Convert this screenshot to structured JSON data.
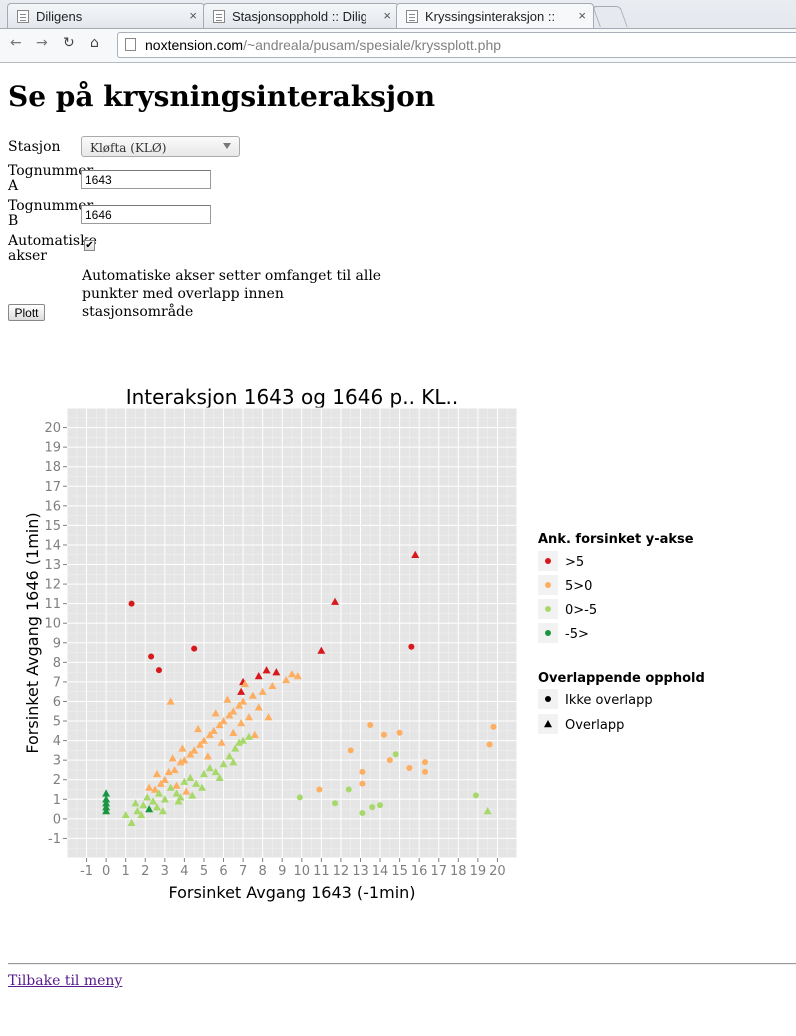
{
  "browser": {
    "tabs": [
      {
        "label": "Diligens",
        "active": false
      },
      {
        "label": "Stasjonsopphold :: Dilig",
        "active": false
      },
      {
        "label": "Kryssingsinteraksjon ::",
        "active": true
      }
    ],
    "url_host": "noxtension.com",
    "url_path": "/~andreala/pusam/spesiale/kryssplott.php",
    "close_glyph": "×"
  },
  "page": {
    "title": "Se på krysningsinteraksjon",
    "form": {
      "station_label": "Stasjon",
      "station_value": "Kløfta (KLØ)",
      "train_a_label": "Tognummer A",
      "train_a_value": "1643",
      "train_b_label": "Tognummer B",
      "train_b_value": "1646",
      "auto_axes_label": "Automatiske akser",
      "auto_axes_checked": true,
      "auto_axes_help": "Automatiske akser setter omfanget til alle punkter med overlapp innen stasjonsområde",
      "plot_button": "Plott"
    },
    "back_link": "Tilbake til meny"
  },
  "colors": {
    "gt5": "#d7191c",
    "5to0": "#fdae61",
    "0tom5": "#a6d96a",
    "ltm5": "#1a9641",
    "panel_bg": "#e5e5e5"
  },
  "chart_data": {
    "type": "scatter",
    "title": "Interaksjon 1643 og 1646 p.. KL..",
    "xlabel": "Forsinket Avgang 1643 (-1min)",
    "ylabel": "Forsinket Avgang 1646 (1min)",
    "xlim": [
      -2,
      21
    ],
    "ylim": [
      -2,
      21
    ],
    "x_ticks": [
      -1,
      0,
      1,
      2,
      3,
      4,
      5,
      6,
      7,
      8,
      9,
      10,
      11,
      12,
      13,
      14,
      15,
      16,
      17,
      18,
      19,
      20
    ],
    "y_ticks": [
      -1,
      0,
      1,
      2,
      3,
      4,
      5,
      6,
      7,
      8,
      9,
      10,
      11,
      12,
      13,
      14,
      15,
      16,
      17,
      18,
      19,
      20
    ],
    "grid": true,
    "legend_position": "right",
    "legend_color_title": "Ank. forsinket y-akse",
    "legend_color_entries": [
      ">5",
      "5>0",
      "0>-5",
      "-5>"
    ],
    "legend_shape_title": "Overlappende opphold",
    "legend_shape_entries": [
      "Ikke overlapp",
      "Overlapp"
    ],
    "series": [
      {
        "name": ">5",
        "points": [
          {
            "x": 1.3,
            "y": 11,
            "shape": "circle"
          },
          {
            "x": 2.3,
            "y": 8.3,
            "shape": "circle"
          },
          {
            "x": 2.7,
            "y": 7.6,
            "shape": "circle"
          },
          {
            "x": 4.5,
            "y": 8.7,
            "shape": "circle"
          },
          {
            "x": 15.6,
            "y": 8.8,
            "shape": "circle"
          },
          {
            "x": 15.8,
            "y": 13.5,
            "shape": "triangle"
          },
          {
            "x": 11.7,
            "y": 11.1,
            "shape": "triangle"
          },
          {
            "x": 11.0,
            "y": 8.6,
            "shape": "triangle"
          },
          {
            "x": 7.0,
            "y": 7.0,
            "shape": "triangle"
          },
          {
            "x": 7.8,
            "y": 7.3,
            "shape": "triangle"
          },
          {
            "x": 8.2,
            "y": 7.6,
            "shape": "triangle"
          },
          {
            "x": 8.7,
            "y": 7.5,
            "shape": "triangle"
          },
          {
            "x": 6.9,
            "y": 6.5,
            "shape": "triangle"
          }
        ]
      },
      {
        "name": "5>0",
        "points": [
          {
            "x": 3.3,
            "y": 6.0,
            "shape": "triangle"
          },
          {
            "x": 12.5,
            "y": 3.5,
            "shape": "circle"
          },
          {
            "x": 13.5,
            "y": 4.8,
            "shape": "circle"
          },
          {
            "x": 14.2,
            "y": 4.3,
            "shape": "circle"
          },
          {
            "x": 15.0,
            "y": 4.4,
            "shape": "circle"
          },
          {
            "x": 13.1,
            "y": 2.4,
            "shape": "circle"
          },
          {
            "x": 14.5,
            "y": 3.0,
            "shape": "circle"
          },
          {
            "x": 15.5,
            "y": 2.6,
            "shape": "circle"
          },
          {
            "x": 16.3,
            "y": 2.9,
            "shape": "circle"
          },
          {
            "x": 16.3,
            "y": 2.4,
            "shape": "circle"
          },
          {
            "x": 13.1,
            "y": 1.8,
            "shape": "circle"
          },
          {
            "x": 10.9,
            "y": 1.5,
            "shape": "circle"
          },
          {
            "x": 19.8,
            "y": 4.7,
            "shape": "circle"
          },
          {
            "x": 19.6,
            "y": 3.8,
            "shape": "circle"
          },
          {
            "x": 9.5,
            "y": 7.4,
            "shape": "triangle"
          },
          {
            "x": 9.2,
            "y": 7.1,
            "shape": "triangle"
          },
          {
            "x": 9.8,
            "y": 7.3,
            "shape": "triangle"
          },
          {
            "x": 2.5,
            "y": 1.5,
            "shape": "triangle"
          },
          {
            "x": 3.0,
            "y": 2.0,
            "shape": "triangle"
          },
          {
            "x": 3.5,
            "y": 2.5,
            "shape": "triangle"
          },
          {
            "x": 4.0,
            "y": 3.0,
            "shape": "triangle"
          },
          {
            "x": 4.5,
            "y": 3.5,
            "shape": "triangle"
          },
          {
            "x": 5.0,
            "y": 4.0,
            "shape": "triangle"
          },
          {
            "x": 5.5,
            "y": 4.5,
            "shape": "triangle"
          },
          {
            "x": 6.0,
            "y": 5.0,
            "shape": "triangle"
          },
          {
            "x": 6.5,
            "y": 5.5,
            "shape": "triangle"
          },
          {
            "x": 7.0,
            "y": 6.0,
            "shape": "triangle"
          },
          {
            "x": 7.5,
            "y": 6.3,
            "shape": "triangle"
          },
          {
            "x": 8.0,
            "y": 6.5,
            "shape": "triangle"
          },
          {
            "x": 8.5,
            "y": 6.8,
            "shape": "triangle"
          },
          {
            "x": 3.2,
            "y": 2.4,
            "shape": "triangle"
          },
          {
            "x": 3.8,
            "y": 2.9,
            "shape": "triangle"
          },
          {
            "x": 4.3,
            "y": 3.3,
            "shape": "triangle"
          },
          {
            "x": 4.8,
            "y": 3.8,
            "shape": "triangle"
          },
          {
            "x": 5.3,
            "y": 4.3,
            "shape": "triangle"
          },
          {
            "x": 5.8,
            "y": 4.8,
            "shape": "triangle"
          },
          {
            "x": 6.3,
            "y": 5.3,
            "shape": "triangle"
          },
          {
            "x": 6.8,
            "y": 5.8,
            "shape": "triangle"
          },
          {
            "x": 7.3,
            "y": 5.2,
            "shape": "triangle"
          },
          {
            "x": 7.8,
            "y": 5.7,
            "shape": "triangle"
          },
          {
            "x": 6.5,
            "y": 4.4,
            "shape": "triangle"
          },
          {
            "x": 5.9,
            "y": 3.9,
            "shape": "triangle"
          },
          {
            "x": 2.8,
            "y": 1.8,
            "shape": "triangle"
          },
          {
            "x": 2.2,
            "y": 1.6,
            "shape": "triangle"
          },
          {
            "x": 3.6,
            "y": 1.7,
            "shape": "triangle"
          },
          {
            "x": 4.1,
            "y": 1.4,
            "shape": "triangle"
          },
          {
            "x": 5.2,
            "y": 3.2,
            "shape": "triangle"
          },
          {
            "x": 6.9,
            "y": 4.9,
            "shape": "triangle"
          },
          {
            "x": 7.6,
            "y": 4.3,
            "shape": "triangle"
          },
          {
            "x": 8.3,
            "y": 5.2,
            "shape": "triangle"
          },
          {
            "x": 3.9,
            "y": 3.6,
            "shape": "triangle"
          },
          {
            "x": 4.7,
            "y": 4.6,
            "shape": "triangle"
          },
          {
            "x": 5.6,
            "y": 5.4,
            "shape": "triangle"
          },
          {
            "x": 6.2,
            "y": 6.1,
            "shape": "triangle"
          },
          {
            "x": 7.1,
            "y": 6.9,
            "shape": "triangle"
          },
          {
            "x": 2.6,
            "y": 2.3,
            "shape": "triangle"
          },
          {
            "x": 3.4,
            "y": 3.1,
            "shape": "triangle"
          }
        ]
      },
      {
        "name": "0>-5",
        "points": [
          {
            "x": 9.9,
            "y": 1.1,
            "shape": "circle"
          },
          {
            "x": 11.7,
            "y": 0.8,
            "shape": "circle"
          },
          {
            "x": 12.4,
            "y": 1.5,
            "shape": "circle"
          },
          {
            "x": 13.1,
            "y": 0.3,
            "shape": "circle"
          },
          {
            "x": 13.6,
            "y": 0.6,
            "shape": "circle"
          },
          {
            "x": 14.0,
            "y": 0.7,
            "shape": "circle"
          },
          {
            "x": 14.8,
            "y": 3.3,
            "shape": "circle"
          },
          {
            "x": 18.9,
            "y": 1.2,
            "shape": "circle"
          },
          {
            "x": 19.5,
            "y": 0.4,
            "shape": "triangle"
          },
          {
            "x": 1.0,
            "y": 0.2,
            "shape": "triangle"
          },
          {
            "x": 1.3,
            "y": -0.2,
            "shape": "triangle"
          },
          {
            "x": 1.6,
            "y": 0.4,
            "shape": "triangle"
          },
          {
            "x": 1.9,
            "y": 0.7,
            "shape": "triangle"
          },
          {
            "x": 2.1,
            "y": 1.1,
            "shape": "triangle"
          },
          {
            "x": 2.4,
            "y": 0.9,
            "shape": "triangle"
          },
          {
            "x": 2.7,
            "y": 1.3,
            "shape": "triangle"
          },
          {
            "x": 3.0,
            "y": 1.0,
            "shape": "triangle"
          },
          {
            "x": 3.3,
            "y": 1.6,
            "shape": "triangle"
          },
          {
            "x": 3.6,
            "y": 1.3,
            "shape": "triangle"
          },
          {
            "x": 4.0,
            "y": 1.9,
            "shape": "triangle"
          },
          {
            "x": 4.3,
            "y": 2.1,
            "shape": "triangle"
          },
          {
            "x": 4.6,
            "y": 1.8,
            "shape": "triangle"
          },
          {
            "x": 5.0,
            "y": 2.3,
            "shape": "triangle"
          },
          {
            "x": 5.3,
            "y": 2.6,
            "shape": "triangle"
          },
          {
            "x": 5.6,
            "y": 2.4,
            "shape": "triangle"
          },
          {
            "x": 6.0,
            "y": 2.8,
            "shape": "triangle"
          },
          {
            "x": 6.3,
            "y": 3.2,
            "shape": "triangle"
          },
          {
            "x": 6.6,
            "y": 3.6,
            "shape": "triangle"
          },
          {
            "x": 7.0,
            "y": 4.0,
            "shape": "triangle"
          },
          {
            "x": 1.5,
            "y": 0.8,
            "shape": "triangle"
          },
          {
            "x": 1.8,
            "y": 0.2,
            "shape": "triangle"
          },
          {
            "x": 2.2,
            "y": 0.5,
            "shape": "triangle"
          },
          {
            "x": 2.6,
            "y": 0.6,
            "shape": "triangle"
          },
          {
            "x": 3.8,
            "y": 1.1,
            "shape": "triangle"
          },
          {
            "x": 4.9,
            "y": 1.6,
            "shape": "triangle"
          },
          {
            "x": 5.8,
            "y": 2.1,
            "shape": "triangle"
          },
          {
            "x": 6.5,
            "y": 2.9,
            "shape": "triangle"
          },
          {
            "x": 7.3,
            "y": 4.2,
            "shape": "triangle"
          },
          {
            "x": 6.8,
            "y": 3.9,
            "shape": "triangle"
          },
          {
            "x": 3.7,
            "y": 0.9,
            "shape": "triangle"
          },
          {
            "x": 2.9,
            "y": 0.4,
            "shape": "triangle"
          },
          {
            "x": 4.4,
            "y": 1.2,
            "shape": "triangle"
          }
        ]
      },
      {
        "name": "-5>",
        "points": [
          {
            "x": 0,
            "y": 1.3,
            "shape": "triangle"
          },
          {
            "x": 0,
            "y": 1.0,
            "shape": "triangle"
          },
          {
            "x": 0,
            "y": 0.8,
            "shape": "triangle"
          },
          {
            "x": 0,
            "y": 0.6,
            "shape": "triangle"
          },
          {
            "x": 0,
            "y": 0.4,
            "shape": "triangle"
          },
          {
            "x": 2.2,
            "y": 0.5,
            "shape": "triangle"
          }
        ]
      }
    ]
  }
}
